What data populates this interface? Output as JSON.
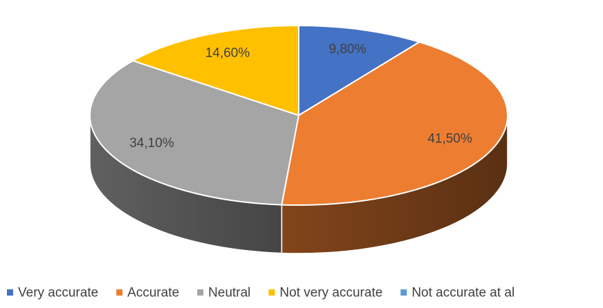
{
  "chart_data": {
    "type": "pie",
    "style": "3d",
    "categories": [
      "Very accurate",
      "Accurate",
      "Neutral",
      "Not very accurate",
      "Not accurate at al"
    ],
    "values": [
      9.8,
      41.5,
      34.1,
      14.6,
      0
    ],
    "labels": [
      "9,80%",
      "41,50%",
      "34,10%",
      "14,60%",
      ""
    ],
    "colors": [
      "#4472C4",
      "#ED7D31",
      "#A5A5A5",
      "#FFC000",
      "#5B9BD5"
    ],
    "legend_position": "bottom"
  }
}
